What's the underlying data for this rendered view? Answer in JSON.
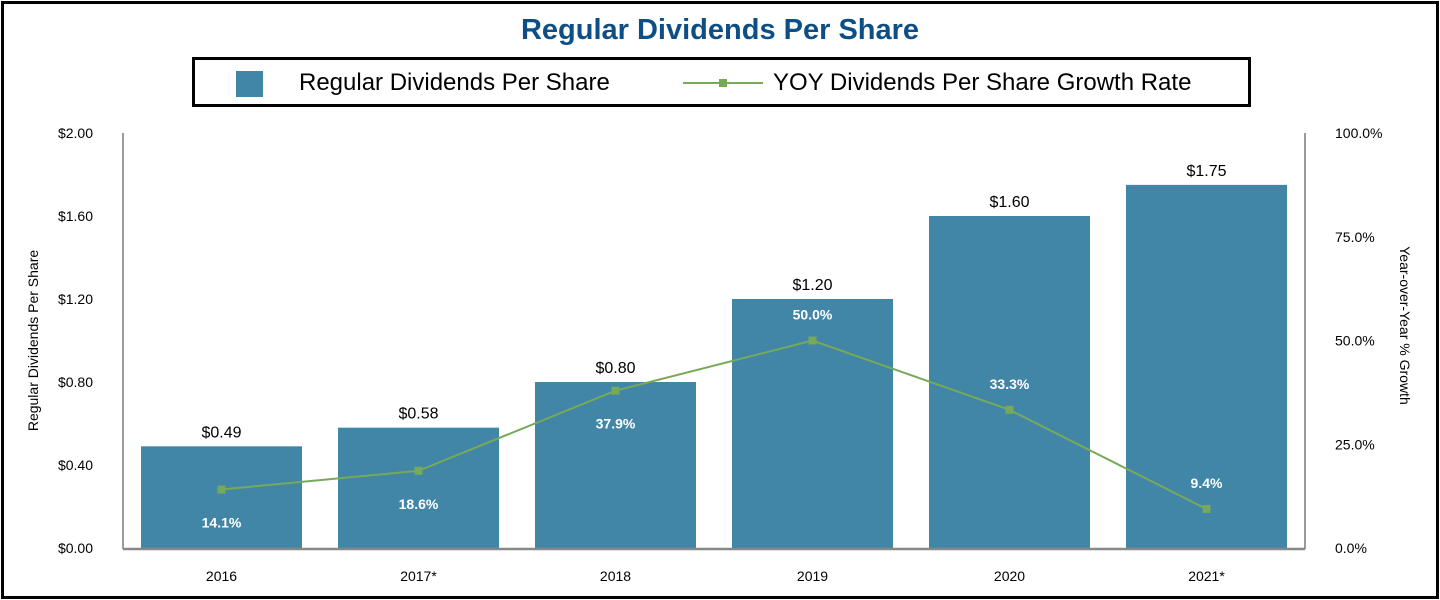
{
  "chart_data": {
    "type": "bar",
    "title": "Regular Dividends Per Share",
    "categories": [
      "2016",
      "2017*",
      "2018",
      "2019",
      "2020",
      "2021*"
    ],
    "series": [
      {
        "name": "Regular Dividends Per Share",
        "type": "bar",
        "axis": "left",
        "values": [
          0.49,
          0.58,
          0.8,
          1.2,
          1.6,
          1.75
        ],
        "labels": [
          "$0.49",
          "$0.58",
          "$0.80",
          "$1.20",
          "$1.60",
          "$1.75"
        ],
        "color": "#4186a7"
      },
      {
        "name": "YOY Dividends Per Share Growth Rate",
        "type": "line",
        "axis": "right",
        "values": [
          14.1,
          18.6,
          37.9,
          50.0,
          33.3,
          9.4
        ],
        "labels": [
          "14.1%",
          "18.6%",
          "37.9%",
          "50.0%",
          "33.3%",
          "9.4%"
        ],
        "color": "#77a95b"
      }
    ],
    "ylabel": "Regular Dividends Per Share",
    "ylabel_right": "Year-over-Year % Growth",
    "ylim": [
      0,
      2.0
    ],
    "ylim_right": [
      0,
      100
    ],
    "yticks": [
      "$0.00",
      "$0.40",
      "$0.80",
      "$1.20",
      "$1.60",
      "$2.00"
    ],
    "yticks_right": [
      "0.0%",
      "25.0%",
      "50.0%",
      "75.0%",
      "100.0%"
    ],
    "grid": false,
    "legend_position": "top"
  }
}
